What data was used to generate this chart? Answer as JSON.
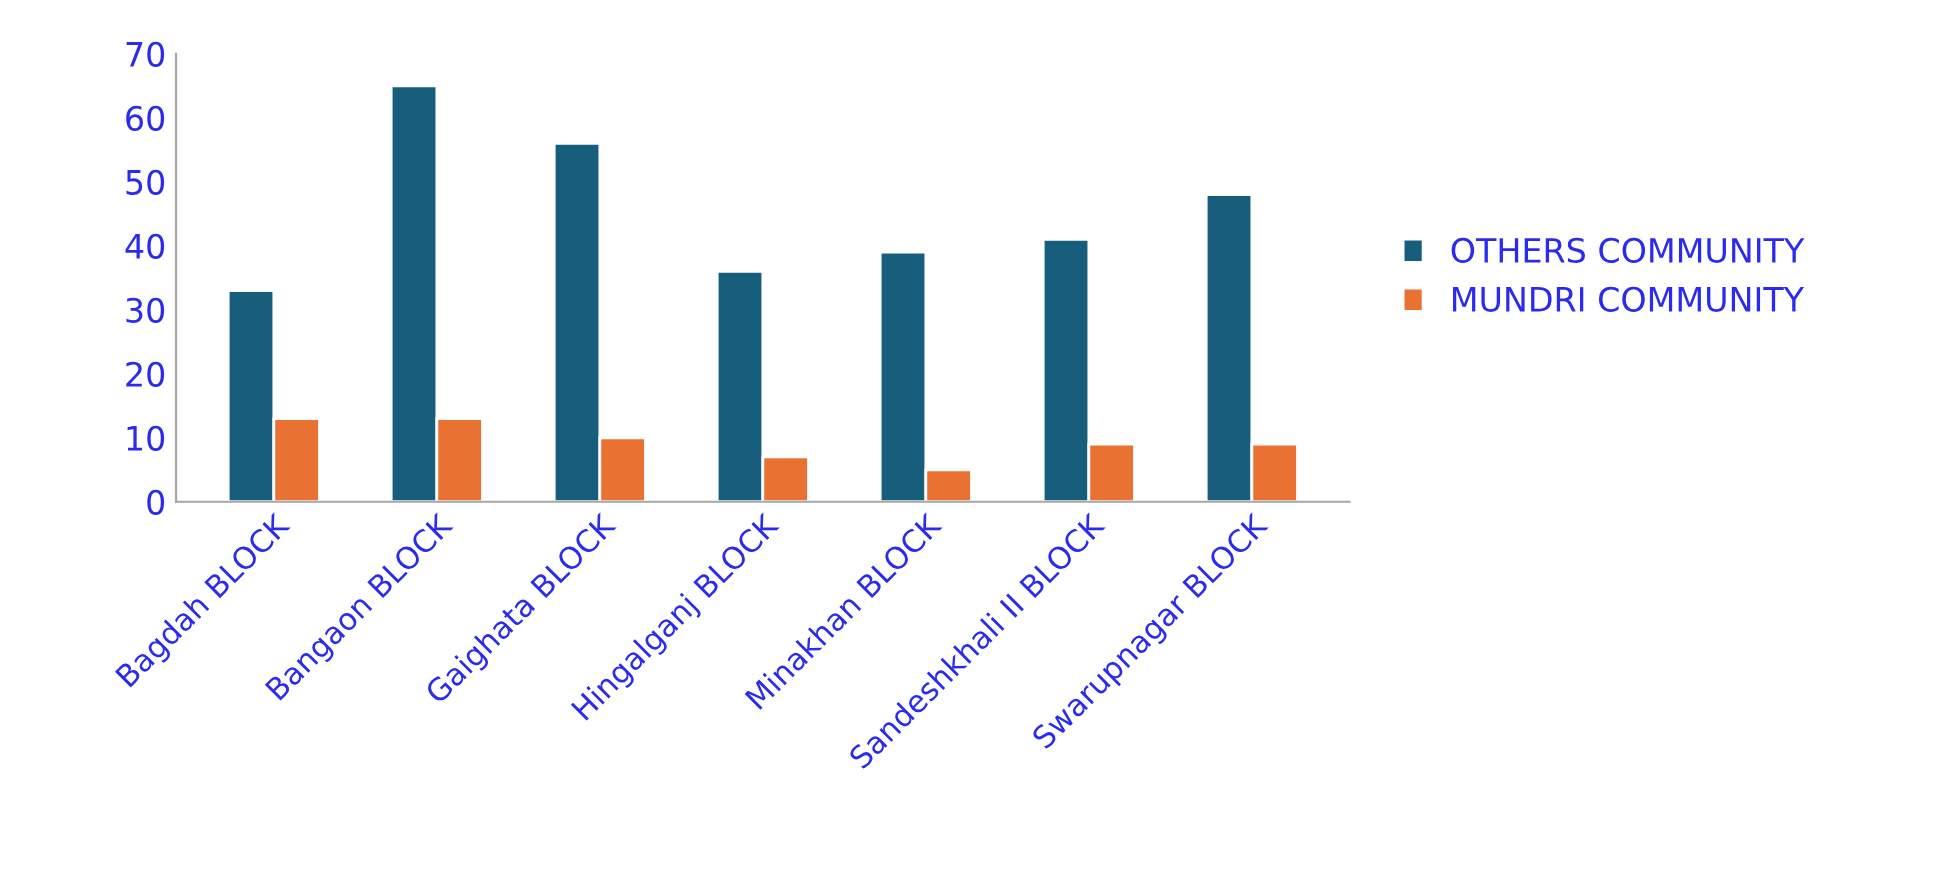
{
  "chart_data": {
    "type": "bar",
    "categories": [
      "Bagdah BLOCK",
      "Bangaon BLOCK",
      "Gaighata BLOCK",
      "Hingalganj BLOCK",
      "Minakhan BLOCK",
      "Sandeshkhali II BLOCK",
      "Swarupnagar BLOCK"
    ],
    "series": [
      {
        "name": "OTHERS COMMUNITY",
        "color": "#175e7c",
        "values": [
          33,
          65,
          56,
          36,
          39,
          41,
          48
        ]
      },
      {
        "name": "MUNDRI COMMUNITY",
        "color": "#e97132",
        "values": [
          13,
          13,
          10,
          7,
          5,
          9,
          9
        ]
      }
    ],
    "ylim": [
      0,
      70
    ],
    "yticks": [
      0,
      10,
      20,
      30,
      40,
      50,
      60,
      70
    ],
    "grid": false,
    "legend": "right"
  }
}
